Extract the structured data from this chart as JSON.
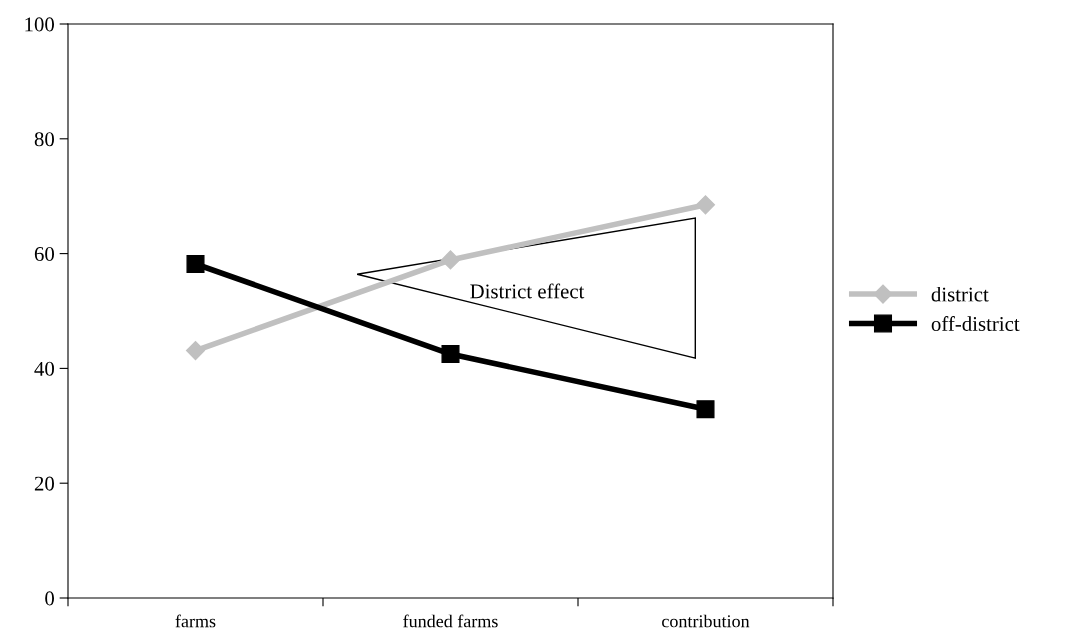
{
  "chart_data": {
    "type": "line",
    "categories": [
      "farms",
      "funded farms",
      "contribution"
    ],
    "series": [
      {
        "name": "district",
        "color": "#c0c0c0",
        "marker": "diamond",
        "values": [
          43.1,
          58.9,
          68.5
        ]
      },
      {
        "name": "off-district",
        "color": "#000000",
        "marker": "square",
        "values": [
          58.2,
          42.5,
          32.9
        ]
      }
    ],
    "ylim": [
      0,
      100
    ],
    "yticks": [
      0,
      20,
      40,
      60,
      80,
      100
    ],
    "grid": false,
    "legend": "right",
    "line_style": "solid",
    "annotations": [
      "District effect"
    ]
  }
}
